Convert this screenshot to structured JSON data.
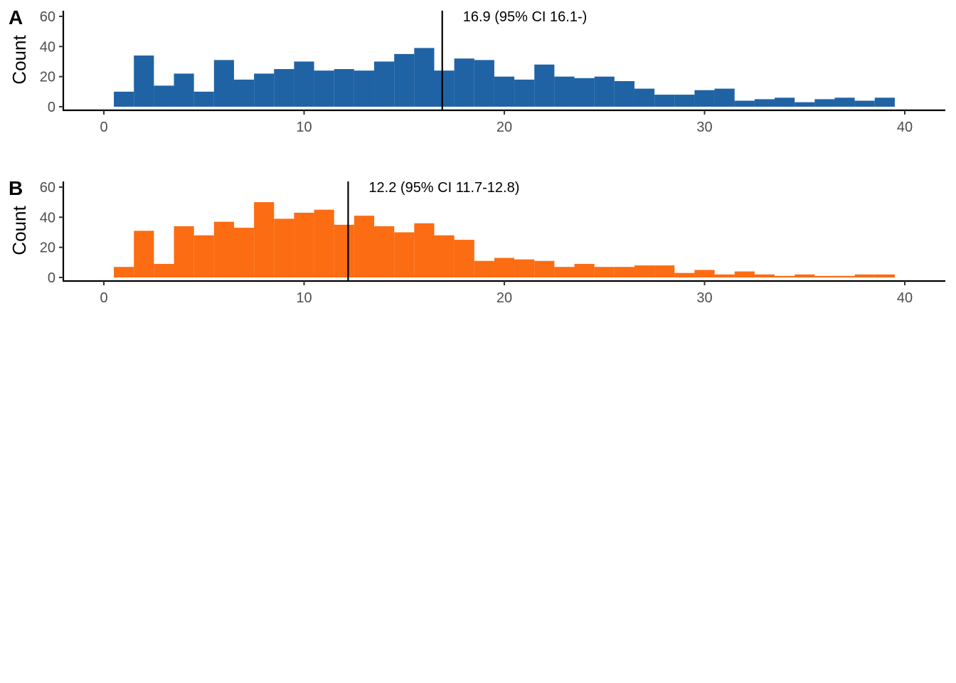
{
  "chart_data": [
    {
      "type": "bar",
      "panel_tag": "A",
      "ylabel": "Count",
      "xlim": [
        -2,
        42
      ],
      "ylim": [
        0,
        62
      ],
      "xticks": [
        0,
        10,
        20,
        30,
        40
      ],
      "yticks": [
        0,
        20,
        40,
        60
      ],
      "bin_width": 1,
      "bin_centers": [
        1,
        2,
        3,
        4,
        5,
        6,
        7,
        8,
        9,
        10,
        11,
        12,
        13,
        14,
        15,
        16,
        17,
        18,
        19,
        20,
        21,
        22,
        23,
        24,
        25,
        26,
        27,
        28,
        29,
        30,
        31,
        32,
        33,
        34,
        35,
        36,
        37,
        38,
        39
      ],
      "values": [
        10,
        34,
        14,
        22,
        10,
        31,
        18,
        22,
        25,
        30,
        24,
        25,
        24,
        30,
        35,
        39,
        24,
        32,
        31,
        20,
        18,
        28,
        20,
        19,
        20,
        17,
        12,
        8,
        8,
        11,
        12,
        4,
        5,
        6,
        3,
        5,
        6,
        4,
        6
      ],
      "color": "#1f63a5",
      "vline_x": 16.9,
      "annotation": "16.9 (95% CI 16.1-)",
      "grid": false
    },
    {
      "type": "bar",
      "panel_tag": "B",
      "ylabel": "Count",
      "xlim": [
        -2,
        42
      ],
      "ylim": [
        0,
        62
      ],
      "xticks": [
        0,
        10,
        20,
        30,
        40
      ],
      "yticks": [
        0,
        20,
        40,
        60
      ],
      "bin_width": 1,
      "bin_centers": [
        1,
        2,
        3,
        4,
        5,
        6,
        7,
        8,
        9,
        10,
        11,
        12,
        13,
        14,
        15,
        16,
        17,
        18,
        19,
        20,
        21,
        22,
        23,
        24,
        25,
        26,
        27,
        28,
        29,
        30,
        31,
        32,
        33,
        34,
        35,
        36,
        37,
        38,
        39
      ],
      "values": [
        7,
        31,
        9,
        34,
        28,
        37,
        33,
        50,
        39,
        43,
        45,
        35,
        41,
        34,
        30,
        36,
        28,
        25,
        11,
        13,
        12,
        11,
        7,
        9,
        7,
        7,
        8,
        8,
        3,
        5,
        2,
        4,
        2,
        1,
        2,
        1,
        1,
        2,
        2
      ],
      "color": "#fc6c12",
      "vline_x": 12.2,
      "annotation": "12.2 (95% CI 11.7-12.8)",
      "grid": false
    }
  ]
}
